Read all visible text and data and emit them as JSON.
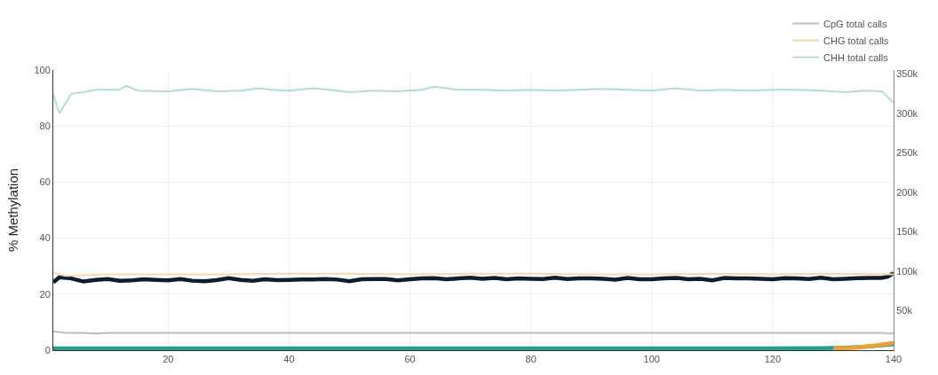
{
  "chart_data": {
    "type": "line",
    "ylabel": "% Methylation",
    "xlim": [
      1,
      140
    ],
    "xticks": [
      20,
      40,
      60,
      80,
      100,
      120,
      140
    ],
    "ylim": [
      0,
      100
    ],
    "yticks": [
      0,
      20,
      40,
      60,
      80,
      100
    ],
    "y2lim": [
      0,
      355000
    ],
    "y2ticks": [
      {
        "value": 50000,
        "label": "50k"
      },
      {
        "value": 100000,
        "label": "100k"
      },
      {
        "value": 150000,
        "label": "150k"
      },
      {
        "value": 200000,
        "label": "200k"
      },
      {
        "value": 250000,
        "label": "250k"
      },
      {
        "value": 300000,
        "label": "300k"
      },
      {
        "value": 350000,
        "label": "350k"
      }
    ],
    "grid": true,
    "legend": "top right",
    "marker": "none",
    "line_style": "solid",
    "series": [
      {
        "name": "CpG total calls",
        "color": "#bdbdbd",
        "axis": "y2",
        "x": [
          1,
          3,
          6,
          8,
          10,
          20,
          25,
          30,
          40,
          50,
          60,
          70,
          80,
          90,
          100,
          110,
          120,
          130,
          138,
          140
        ],
        "values": [
          24000,
          22000,
          22000,
          21000,
          22000,
          22000,
          22000,
          22000,
          22000,
          22000,
          22000,
          22000,
          22000,
          22000,
          22000,
          22000,
          22000,
          22000,
          22000,
          21000
        ]
      },
      {
        "name": "CHG total calls",
        "color": "#f3d9a8",
        "axis": "y2",
        "x": [
          1,
          3,
          6,
          10,
          20,
          30,
          40,
          50,
          60,
          70,
          80,
          90,
          100,
          110,
          120,
          130,
          140
        ],
        "values": [
          98000,
          94000,
          95000,
          96000,
          96000,
          96000,
          97000,
          97000,
          96000,
          97000,
          97000,
          96000,
          96000,
          97000,
          96000,
          97000,
          96000
        ]
      },
      {
        "name": "CHH total calls",
        "color": "#aee0d6",
        "axis": "y2",
        "x": [
          1,
          2,
          4,
          6,
          8,
          10,
          12,
          13,
          15,
          20,
          24,
          28,
          32,
          35,
          37,
          40,
          44,
          48,
          50,
          54,
          58,
          62,
          64,
          68,
          72,
          76,
          80,
          84,
          88,
          92,
          96,
          100,
          104,
          108,
          112,
          116,
          120,
          124,
          128,
          132,
          135,
          138,
          140
        ],
        "values": [
          324000,
          300000,
          325000,
          327000,
          330000,
          330000,
          330000,
          335000,
          329000,
          328000,
          331000,
          328000,
          329000,
          332000,
          330000,
          329000,
          332000,
          329000,
          327000,
          329000,
          328000,
          330000,
          334000,
          330000,
          330000,
          329000,
          330000,
          329000,
          330000,
          331000,
          330000,
          329000,
          332000,
          329000,
          330000,
          329000,
          330000,
          330000,
          329000,
          327000,
          329000,
          328000,
          314000
        ]
      },
      {
        "color": "#1fa187",
        "x": [
          1,
          20,
          40,
          60,
          80,
          100,
          120,
          128,
          132,
          135,
          138,
          140
        ],
        "values": [
          0.6,
          0.6,
          0.6,
          0.6,
          0.6,
          0.6,
          0.6,
          0.7,
          0.9,
          1.2,
          1.7,
          2.1
        ]
      },
      {
        "color": "#f0a030",
        "x": [
          130,
          133,
          136,
          138,
          140
        ],
        "values": [
          0.6,
          0.8,
          1.4,
          2.0,
          2.6
        ]
      },
      {
        "color": "#0f1c2e",
        "x": [
          1,
          2,
          4,
          6,
          8,
          10,
          12,
          14,
          16,
          18,
          20,
          22,
          24,
          26,
          28,
          30,
          32,
          34,
          36,
          38,
          40,
          42,
          44,
          46,
          48,
          50,
          52,
          54,
          56,
          58,
          60,
          62,
          64,
          66,
          68,
          70,
          72,
          74,
          76,
          78,
          80,
          82,
          84,
          86,
          88,
          90,
          92,
          94,
          96,
          98,
          100,
          102,
          104,
          106,
          108,
          110,
          112,
          114,
          116,
          118,
          120,
          122,
          124,
          126,
          128,
          130,
          132,
          134,
          136,
          138,
          139,
          140
        ],
        "values": [
          24.2,
          26.0,
          25.6,
          24.5,
          25.1,
          25.4,
          24.8,
          24.9,
          25.3,
          25.1,
          24.9,
          25.4,
          24.8,
          24.6,
          25.0,
          25.7,
          25.1,
          24.8,
          25.3,
          25.0,
          25.1,
          25.2,
          25.2,
          25.4,
          25.2,
          24.6,
          25.3,
          25.4,
          25.4,
          24.9,
          25.3,
          25.6,
          25.7,
          25.3,
          25.6,
          25.9,
          25.5,
          25.8,
          25.3,
          25.6,
          25.5,
          25.4,
          25.9,
          25.4,
          25.6,
          25.6,
          25.5,
          25.2,
          25.8,
          25.3,
          25.3,
          25.6,
          25.8,
          25.3,
          25.5,
          24.9,
          25.8,
          25.6,
          25.6,
          25.5,
          25.3,
          25.7,
          25.6,
          25.4,
          25.9,
          25.3,
          25.5,
          25.7,
          25.8,
          25.8,
          26.2,
          27.5
        ]
      }
    ]
  }
}
